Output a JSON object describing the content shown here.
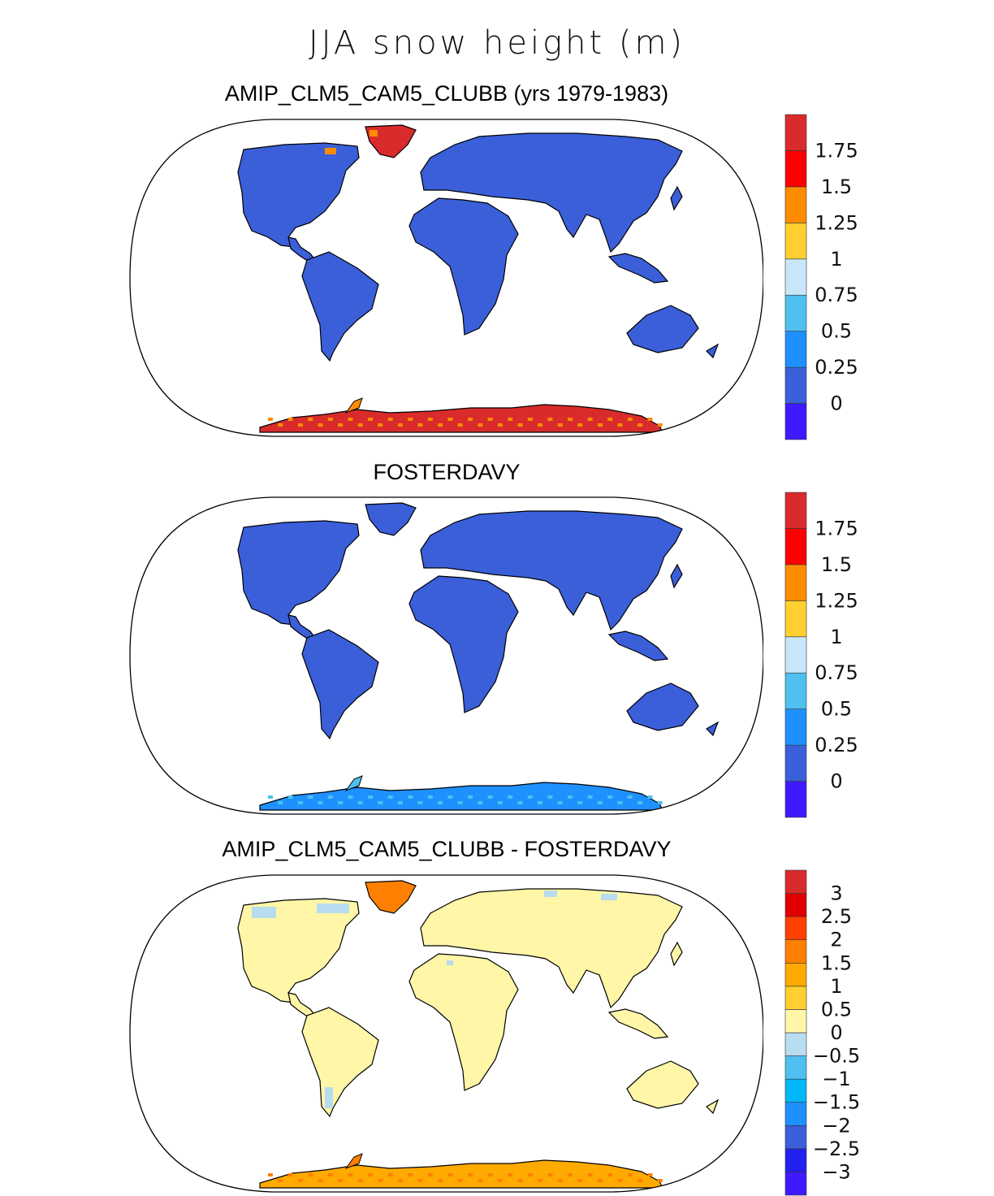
{
  "figure_title": "JJA snow height (m)",
  "colors": {
    "land_low": "#3a5fd9",
    "coastline": "#000000",
    "map_outline": "#000000"
  },
  "panels": [
    {
      "title": "AMIP_CLM5_CAM5_CLUBB (yrs 1979-1983)",
      "colorbar": {
        "colors": [
          "#3f1aff",
          "#3a5fd9",
          "#1f90ff",
          "#4fc0f0",
          "#c8e6f8",
          "#ffd030",
          "#ff8c00",
          "#ff0000",
          "#d92b2b"
        ],
        "labels": [
          "0",
          "0.25",
          "0.5",
          "0.75",
          "1",
          "1.25",
          "1.5",
          "1.75"
        ]
      }
    },
    {
      "title": "FOSTERDAVY",
      "colorbar": {
        "colors": [
          "#3f1aff",
          "#3a5fd9",
          "#1f90ff",
          "#4fc0f0",
          "#c8e6f8",
          "#ffd030",
          "#ff8c00",
          "#ff0000",
          "#d92b2b"
        ],
        "labels": [
          "0",
          "0.25",
          "0.5",
          "0.75",
          "1",
          "1.25",
          "1.5",
          "1.75"
        ]
      }
    },
    {
      "title": "AMIP_CLM5_CAM5_CLUBB - FOSTERDAVY",
      "colorbar": {
        "colors": [
          "#3f1aff",
          "#2020f0",
          "#3a5fd9",
          "#1f90ff",
          "#00b8f8",
          "#4fc0f0",
          "#b8dcf0",
          "#fff6a8",
          "#ffd030",
          "#ffaa00",
          "#ff8000",
          "#ff4000",
          "#e00000",
          "#d92b2b"
        ],
        "labels": [
          "−3",
          "−2.5",
          "−2",
          "−1.5",
          "−1",
          "−0.5",
          "0",
          "0.5",
          "1",
          "1.5",
          "2",
          "2.5",
          "3"
        ]
      }
    }
  ]
}
